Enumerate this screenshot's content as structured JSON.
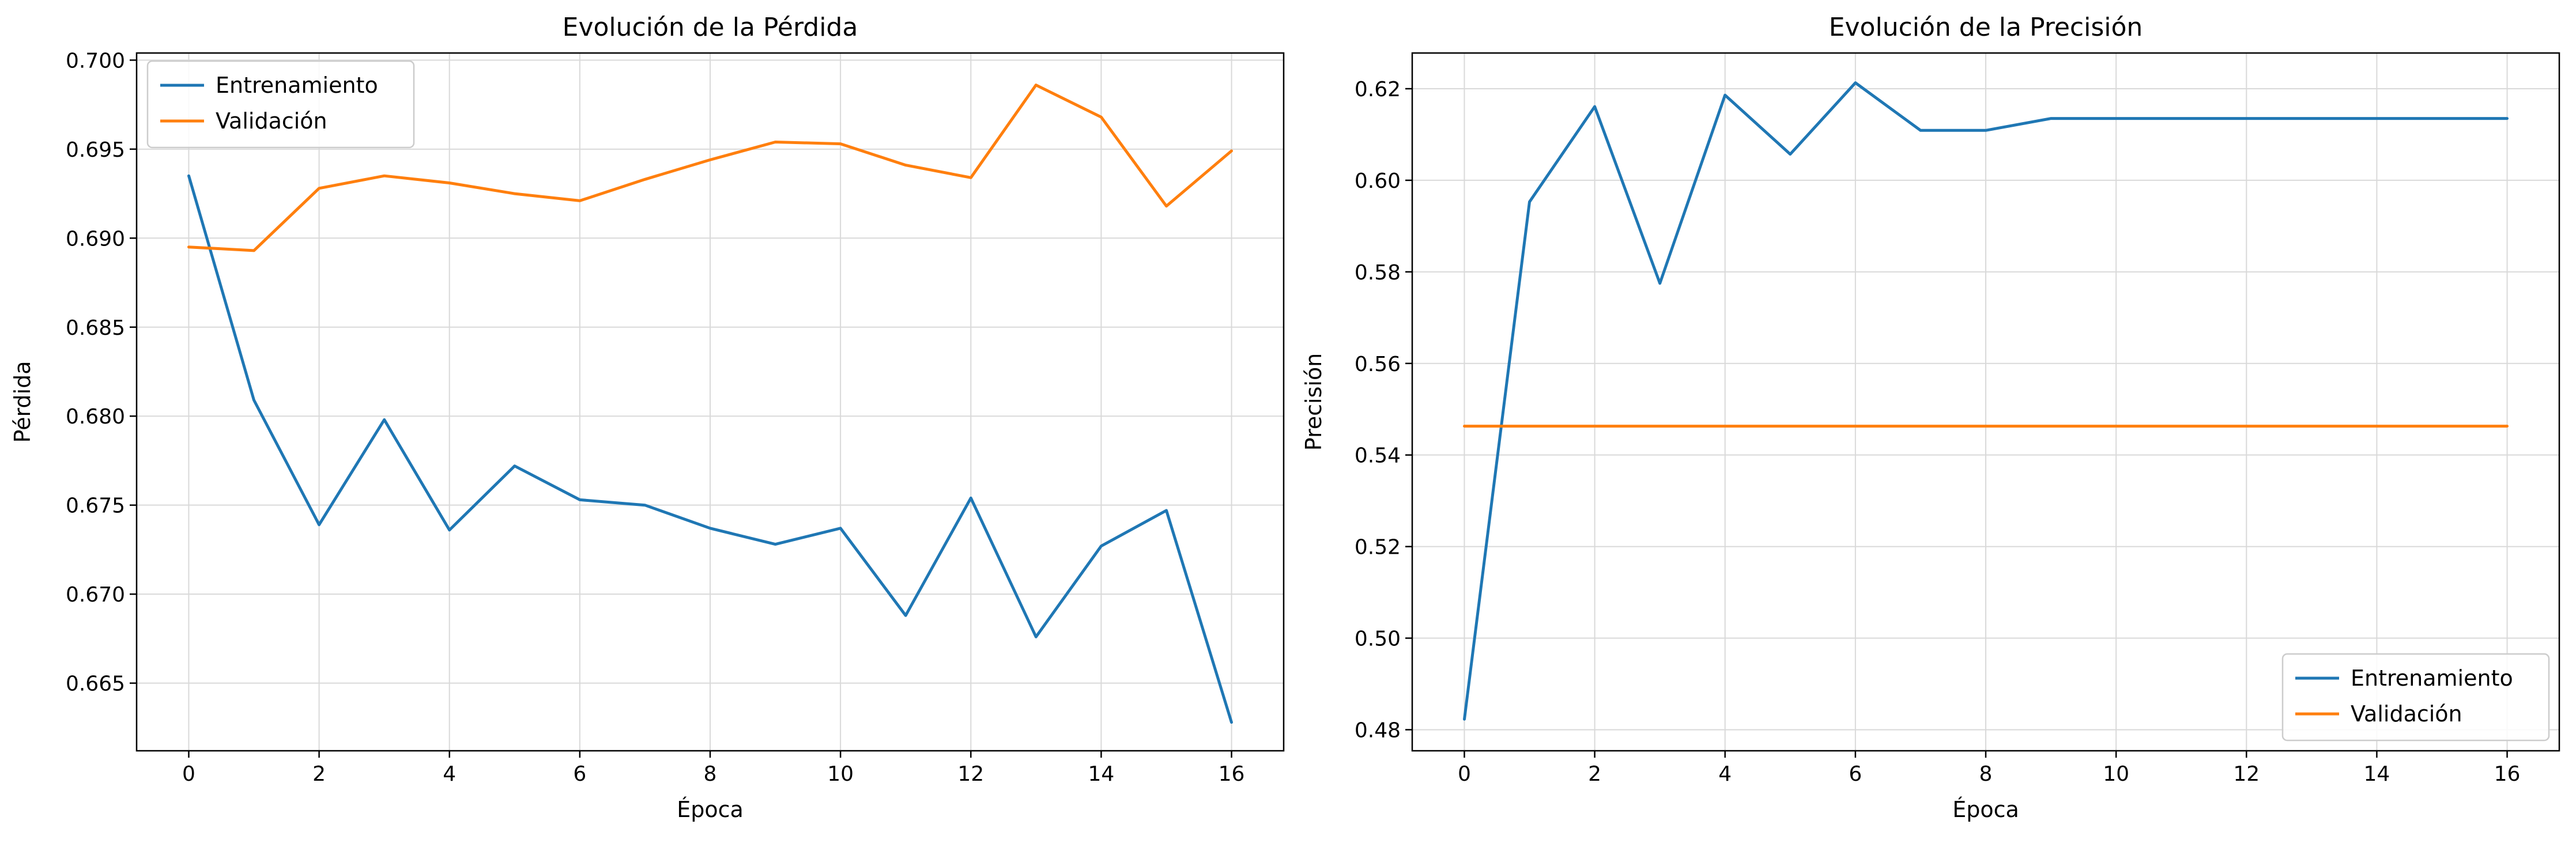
{
  "chart_data": [
    {
      "type": "line",
      "title": "Evolución de la Pérdida",
      "xlabel": "Época",
      "ylabel": "Pérdida",
      "x": [
        0,
        1,
        2,
        3,
        4,
        5,
        6,
        7,
        8,
        9,
        10,
        11,
        12,
        13,
        14,
        15,
        16
      ],
      "xlim": [
        -0.8,
        16.8
      ],
      "ylim": [
        0.6612,
        0.7004
      ],
      "xticks": [
        0,
        2,
        4,
        6,
        8,
        10,
        12,
        14,
        16
      ],
      "yticks": [
        0.665,
        0.67,
        0.675,
        0.68,
        0.685,
        0.69,
        0.695,
        0.7
      ],
      "ytick_labels": [
        "0.665",
        "0.670",
        "0.675",
        "0.680",
        "0.685",
        "0.690",
        "0.695",
        "0.700"
      ],
      "grid": true,
      "legend_position": "upper left",
      "series": [
        {
          "name": "Entrenamiento",
          "color": "#1f77b4",
          "values": [
            0.6935,
            0.6809,
            0.6739,
            0.6798,
            0.6736,
            0.6772,
            0.6753,
            0.675,
            0.6737,
            0.6728,
            0.6737,
            0.6688,
            0.6754,
            0.6676,
            0.6727,
            0.6747,
            0.6628
          ]
        },
        {
          "name": "Validación",
          "color": "#ff7f0e",
          "values": [
            0.6895,
            0.6893,
            0.6928,
            0.6935,
            0.6931,
            0.6925,
            0.6921,
            0.6933,
            0.6944,
            0.6954,
            0.6953,
            0.6941,
            0.6934,
            0.6986,
            0.6968,
            0.6918,
            0.6949
          ]
        }
      ]
    },
    {
      "type": "line",
      "title": "Evolución de la Precisión",
      "xlabel": "Época",
      "ylabel": "Precisión",
      "x": [
        0,
        1,
        2,
        3,
        4,
        5,
        6,
        7,
        8,
        9,
        10,
        11,
        12,
        13,
        14,
        15,
        16
      ],
      "xlim": [
        -0.8,
        16.8
      ],
      "ylim": [
        0.4754,
        0.6278
      ],
      "xticks": [
        0,
        2,
        4,
        6,
        8,
        10,
        12,
        14,
        16
      ],
      "yticks": [
        0.48,
        0.5,
        0.52,
        0.54,
        0.56,
        0.58,
        0.6,
        0.62
      ],
      "ytick_labels": [
        "0.48",
        "0.50",
        "0.52",
        "0.54",
        "0.56",
        "0.58",
        "0.60",
        "0.62"
      ],
      "grid": true,
      "legend_position": "lower right",
      "series": [
        {
          "name": "Entrenamiento",
          "color": "#1f77b4",
          "values": [
            0.4823,
            0.5953,
            0.6161,
            0.5775,
            0.6186,
            0.6057,
            0.6213,
            0.6109,
            0.6109,
            0.6135,
            0.6135,
            0.6135,
            0.6135,
            0.6135,
            0.6135,
            0.6135,
            0.6135
          ]
        },
        {
          "name": "Validación",
          "color": "#ff7f0e",
          "values": [
            0.5463,
            0.5463,
            0.5463,
            0.5463,
            0.5463,
            0.5463,
            0.5463,
            0.5463,
            0.5463,
            0.5463,
            0.5463,
            0.5463,
            0.5463,
            0.5463,
            0.5463,
            0.5463,
            0.5463
          ]
        }
      ]
    }
  ]
}
